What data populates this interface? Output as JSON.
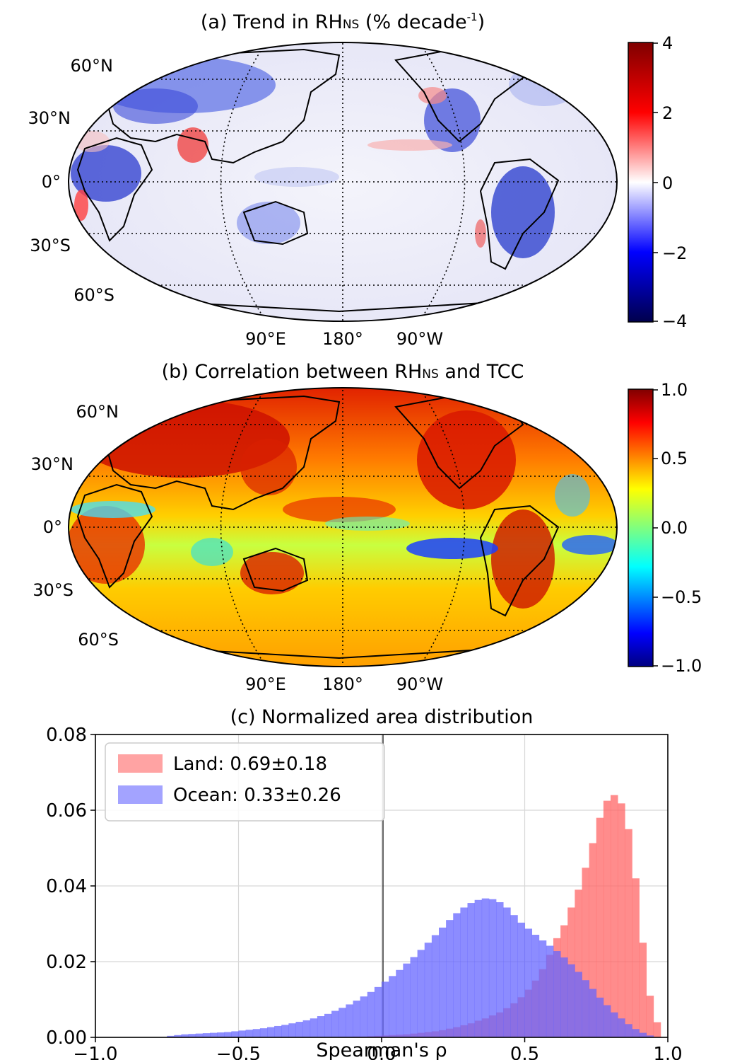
{
  "panel_a": {
    "title_main": "(a) Trend in RH",
    "title_sub": "NS",
    "title_tail": " (% decade",
    "title_sup": "-1",
    "title_close": ")",
    "lat_labels": [
      "60°N",
      "30°N",
      "0°",
      "30°S",
      "60°S"
    ],
    "lon_labels": [
      "90°E",
      "180°",
      "90°W"
    ],
    "colorbar": {
      "ticks": [
        "4",
        "2",
        "0",
        "−2",
        "−4"
      ],
      "colormap": "seismic",
      "range": [
        -4,
        4
      ]
    }
  },
  "panel_b": {
    "title_main": "(b) Correlation between RH",
    "title_sub": "NS",
    "title_tail": " and TCC",
    "lat_labels": [
      "60°N",
      "30°N",
      "0°",
      "30°S",
      "60°S"
    ],
    "lon_labels": [
      "90°E",
      "180°",
      "90°W"
    ],
    "colorbar": {
      "ticks": [
        "1.0",
        "0.5",
        "0.0",
        "−0.5",
        "−1.0"
      ],
      "colormap": "jet",
      "range": [
        -1,
        1
      ]
    }
  },
  "chart_data": {
    "type": "bar",
    "title": "(c) Normalized area distribution",
    "xlabel": "Spearman's ρ",
    "ylabel": "",
    "xlim": [
      -1.0,
      1.0
    ],
    "ylim": [
      0.0,
      0.08
    ],
    "xticks": [
      "−1.0",
      "−0.5",
      "0.0",
      "0.5",
      "1.0"
    ],
    "yticks": [
      "0.00",
      "0.02",
      "0.04",
      "0.06",
      "0.08"
    ],
    "grid": true,
    "legend_position": "top-left",
    "bin_width": 0.025,
    "x": [
      -0.7375,
      -0.7125,
      -0.6875,
      -0.6625,
      -0.6375,
      -0.6125,
      -0.5875,
      -0.5625,
      -0.5375,
      -0.5125,
      -0.4875,
      -0.4625,
      -0.4375,
      -0.4125,
      -0.3875,
      -0.3625,
      -0.3375,
      -0.3125,
      -0.2875,
      -0.2625,
      -0.2375,
      -0.2125,
      -0.1875,
      -0.1625,
      -0.1375,
      -0.1125,
      -0.0875,
      -0.0625,
      -0.0375,
      -0.0125,
      0.0125,
      0.0375,
      0.0625,
      0.0875,
      0.1125,
      0.1375,
      0.1625,
      0.1875,
      0.2125,
      0.2375,
      0.2625,
      0.2875,
      0.3125,
      0.3375,
      0.3625,
      0.3875,
      0.4125,
      0.4375,
      0.4625,
      0.4875,
      0.5125,
      0.5375,
      0.5625,
      0.5875,
      0.6125,
      0.6375,
      0.6625,
      0.6875,
      0.7125,
      0.7375,
      0.7625,
      0.7875,
      0.8125,
      0.8375,
      0.8625,
      0.8875,
      0.9125,
      0.9375,
      0.9625
    ],
    "series": [
      {
        "name": "Land: 0.69±0.18",
        "color": "#ff6666",
        "values": [
          0,
          0,
          0,
          0,
          0,
          0,
          0,
          0,
          0,
          0,
          0,
          0,
          0,
          0,
          0,
          0,
          0,
          0,
          0,
          0,
          0,
          0,
          0,
          0,
          0.0001,
          0.0001,
          0.0002,
          0.0002,
          0.0003,
          0.0004,
          0.0005,
          0.0006,
          0.0007,
          0.0008,
          0.001,
          0.0012,
          0.0014,
          0.0016,
          0.0019,
          0.0023,
          0.0027,
          0.0032,
          0.0037,
          0.0044,
          0.005,
          0.0058,
          0.0066,
          0.0077,
          0.009,
          0.0106,
          0.0126,
          0.015,
          0.018,
          0.0218,
          0.0262,
          0.0296,
          0.0343,
          0.039,
          0.0448,
          0.0513,
          0.058,
          0.0625,
          0.064,
          0.0618,
          0.055,
          0.042,
          0.025,
          0.011,
          0.004
        ]
      },
      {
        "name": "Ocean: 0.33±0.26",
        "color": "#6666ff",
        "values": [
          0.0004,
          0.0006,
          0.0008,
          0.0009,
          0.001,
          0.0011,
          0.0012,
          0.0013,
          0.0014,
          0.0016,
          0.0018,
          0.002,
          0.0022,
          0.0024,
          0.0027,
          0.003,
          0.0033,
          0.0037,
          0.0041,
          0.0045,
          0.005,
          0.0056,
          0.0062,
          0.007,
          0.0078,
          0.0087,
          0.0097,
          0.0108,
          0.012,
          0.0133,
          0.0147,
          0.0162,
          0.0178,
          0.0195,
          0.0212,
          0.0231,
          0.025,
          0.027,
          0.029,
          0.031,
          0.0328,
          0.0343,
          0.0355,
          0.0363,
          0.0367,
          0.0365,
          0.0357,
          0.0343,
          0.0323,
          0.0303,
          0.0287,
          0.0271,
          0.0256,
          0.0242,
          0.0228,
          0.0211,
          0.0193,
          0.0173,
          0.0151,
          0.0128,
          0.0105,
          0.0085,
          0.0066,
          0.005,
          0.0035,
          0.0022,
          0.0012,
          0.0005,
          0.0001
        ]
      }
    ]
  }
}
